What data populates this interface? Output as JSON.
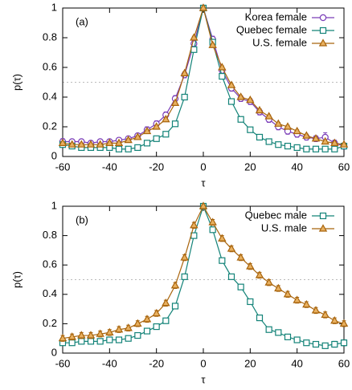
{
  "chart_data": [
    {
      "type": "line",
      "annotation": "(a)",
      "xlabel": "τ",
      "ylabel": "p(τ)",
      "x": [
        -60,
        -56,
        -52,
        -48,
        -44,
        -40,
        -36,
        -32,
        -28,
        -24,
        -20,
        -16,
        -12,
        -8,
        -4,
        0,
        4,
        8,
        12,
        16,
        20,
        24,
        28,
        32,
        36,
        40,
        44,
        48,
        52,
        56,
        60
      ],
      "xlim": [
        -60,
        60
      ],
      "xticks": [
        -60,
        -40,
        -20,
        0,
        20,
        40,
        60
      ],
      "ylim": [
        0,
        1
      ],
      "yticks": [
        0,
        0.2,
        0.4,
        0.6,
        0.8,
        1
      ],
      "hline": 0.5,
      "legend": "upper right",
      "series": [
        {
          "name": "Korea female",
          "color": "#7a3db8",
          "marker": "circle",
          "values": [
            0.1,
            0.1,
            0.1,
            0.09,
            0.1,
            0.1,
            0.11,
            0.12,
            0.14,
            0.18,
            0.22,
            0.28,
            0.39,
            0.55,
            0.76,
            1.0,
            0.79,
            0.58,
            0.46,
            0.39,
            0.37,
            0.3,
            0.25,
            0.2,
            0.17,
            0.15,
            0.13,
            0.12,
            0.13,
            0.09,
            0.07
          ],
          "errors": [
            0.02,
            0.01,
            0.01,
            0.01,
            0.01,
            0.01,
            0.01,
            0.01,
            0.01,
            0.02,
            0.02,
            0.02,
            0.02,
            0.02,
            0.02,
            0.01,
            0.02,
            0.02,
            0.02,
            0.02,
            0.02,
            0.02,
            0.02,
            0.02,
            0.02,
            0.02,
            0.02,
            0.02,
            0.03,
            0.02,
            0.02
          ]
        },
        {
          "name": "Quebec female",
          "color": "#138378",
          "marker": "square",
          "values": [
            0.08,
            0.07,
            0.06,
            0.06,
            0.06,
            0.06,
            0.05,
            0.05,
            0.06,
            0.09,
            0.12,
            0.15,
            0.22,
            0.4,
            0.72,
            1.0,
            0.77,
            0.54,
            0.37,
            0.25,
            0.18,
            0.13,
            0.1,
            0.08,
            0.07,
            0.06,
            0.05,
            0.05,
            0.05,
            0.05,
            0.07
          ],
          "errors": [
            0.01,
            0.01,
            0.01,
            0.01,
            0.01,
            0.01,
            0.01,
            0.01,
            0.01,
            0.01,
            0.01,
            0.01,
            0.01,
            0.01,
            0.01,
            0.01,
            0.01,
            0.01,
            0.01,
            0.01,
            0.01,
            0.01,
            0.01,
            0.01,
            0.01,
            0.01,
            0.01,
            0.01,
            0.01,
            0.01,
            0.01
          ]
        },
        {
          "name": "U.S. female",
          "color": "#a8640c",
          "marker": "triangle",
          "values": [
            0.09,
            0.08,
            0.08,
            0.08,
            0.08,
            0.09,
            0.09,
            0.11,
            0.13,
            0.17,
            0.2,
            0.25,
            0.36,
            0.56,
            0.8,
            1.0,
            0.75,
            0.6,
            0.48,
            0.4,
            0.38,
            0.31,
            0.27,
            0.22,
            0.2,
            0.17,
            0.14,
            0.12,
            0.1,
            0.09,
            0.08
          ],
          "errors": [
            0.01,
            0.01,
            0.01,
            0.01,
            0.01,
            0.01,
            0.01,
            0.01,
            0.01,
            0.01,
            0.01,
            0.01,
            0.01,
            0.01,
            0.01,
            0.01,
            0.01,
            0.01,
            0.01,
            0.01,
            0.01,
            0.01,
            0.01,
            0.01,
            0.01,
            0.01,
            0.01,
            0.01,
            0.01,
            0.01,
            0.01
          ]
        }
      ]
    },
    {
      "type": "line",
      "annotation": "(b)",
      "xlabel": "τ",
      "ylabel": "p(τ)",
      "x": [
        -60,
        -56,
        -52,
        -48,
        -44,
        -40,
        -36,
        -32,
        -28,
        -24,
        -20,
        -16,
        -12,
        -8,
        -4,
        0,
        4,
        8,
        12,
        16,
        20,
        24,
        28,
        32,
        36,
        40,
        44,
        48,
        52,
        56,
        60
      ],
      "xlim": [
        -60,
        60
      ],
      "xticks": [
        -60,
        -40,
        -20,
        0,
        20,
        40,
        60
      ],
      "ylim": [
        0,
        1
      ],
      "yticks": [
        0,
        0.2,
        0.4,
        0.6,
        0.8,
        1
      ],
      "hline": 0.5,
      "legend": "upper right",
      "series": [
        {
          "name": "Quebec male",
          "color": "#138378",
          "marker": "square",
          "values": [
            0.07,
            0.07,
            0.08,
            0.08,
            0.08,
            0.09,
            0.09,
            0.1,
            0.12,
            0.15,
            0.18,
            0.22,
            0.32,
            0.52,
            0.8,
            1.0,
            0.84,
            0.63,
            0.52,
            0.45,
            0.35,
            0.24,
            0.16,
            0.14,
            0.11,
            0.09,
            0.07,
            0.06,
            0.05,
            0.06,
            0.07
          ],
          "errors": [
            0.01,
            0.01,
            0.01,
            0.01,
            0.01,
            0.01,
            0.01,
            0.01,
            0.01,
            0.01,
            0.01,
            0.01,
            0.01,
            0.01,
            0.01,
            0.01,
            0.01,
            0.01,
            0.01,
            0.01,
            0.01,
            0.01,
            0.01,
            0.01,
            0.01,
            0.01,
            0.01,
            0.01,
            0.01,
            0.02,
            0.02
          ]
        },
        {
          "name": "U.S. male",
          "color": "#a8640c",
          "marker": "triangle",
          "values": [
            0.1,
            0.11,
            0.12,
            0.12,
            0.13,
            0.14,
            0.16,
            0.17,
            0.2,
            0.23,
            0.27,
            0.34,
            0.46,
            0.65,
            0.87,
            1.0,
            0.89,
            0.78,
            0.71,
            0.65,
            0.59,
            0.53,
            0.48,
            0.44,
            0.4,
            0.36,
            0.33,
            0.29,
            0.26,
            0.22,
            0.2
          ],
          "errors": [
            0.02,
            0.02,
            0.02,
            0.02,
            0.02,
            0.02,
            0.02,
            0.02,
            0.02,
            0.02,
            0.02,
            0.02,
            0.02,
            0.02,
            0.02,
            0.01,
            0.02,
            0.02,
            0.02,
            0.02,
            0.02,
            0.02,
            0.02,
            0.02,
            0.02,
            0.02,
            0.02,
            0.02,
            0.02,
            0.02,
            0.02
          ]
        }
      ]
    }
  ]
}
